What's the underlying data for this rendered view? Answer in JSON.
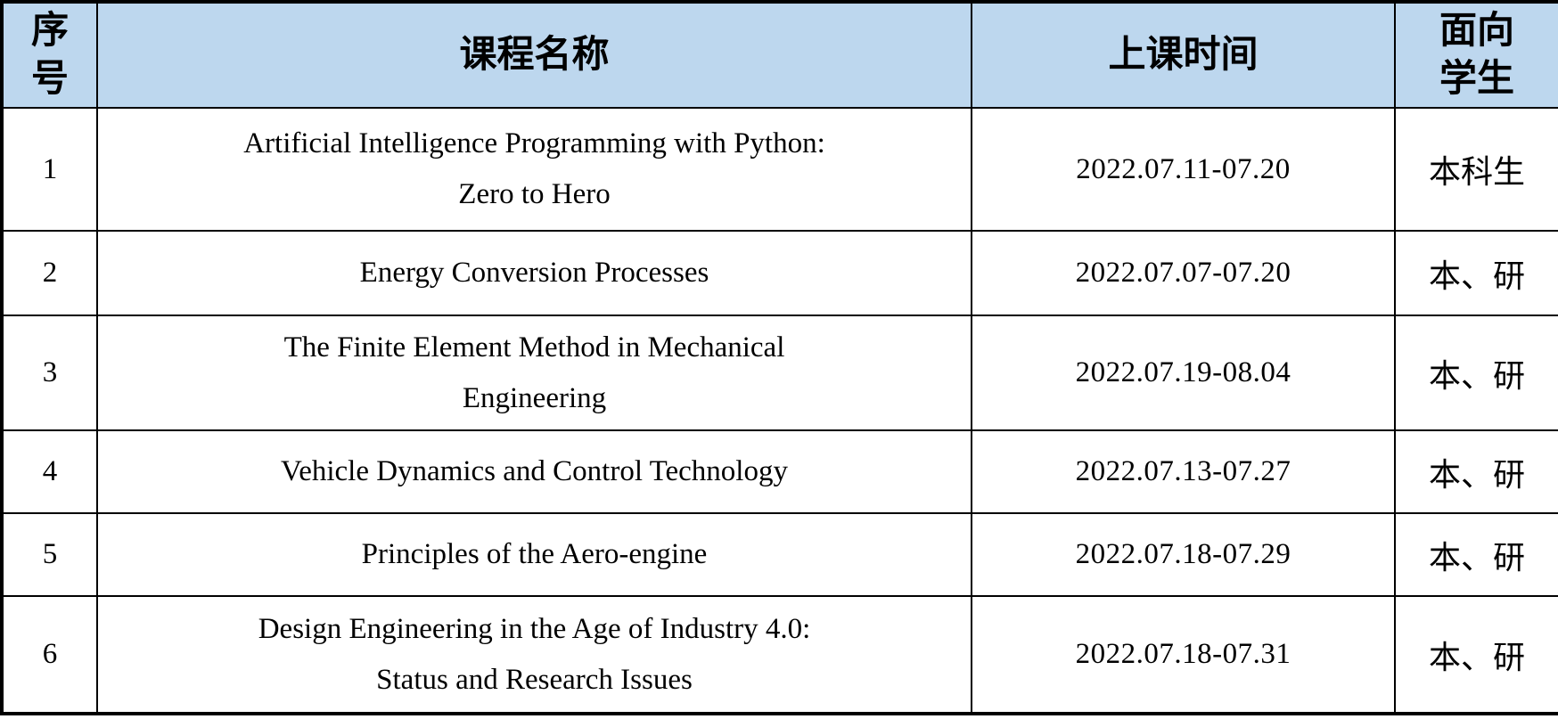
{
  "page": {
    "background_color": "#ffffff",
    "text_color": "#000000",
    "border_color": "#000000"
  },
  "table": {
    "header": {
      "bg_color": "#bdd7ee",
      "columns": [
        {
          "id": "no",
          "lines": [
            "序",
            "号"
          ]
        },
        {
          "id": "course",
          "lines": [
            "课程名称"
          ]
        },
        {
          "id": "time",
          "lines": [
            "上课时间"
          ]
        },
        {
          "id": "students",
          "lines": [
            "面向",
            "学生"
          ]
        }
      ]
    },
    "rows": [
      {
        "no": "1",
        "course_lines": [
          "Artificial Intelligence Programming with Python:",
          "Zero to Hero"
        ],
        "time": "2022.07.11-07.20",
        "students": "本科生"
      },
      {
        "no": "2",
        "course_lines": [
          "Energy Conversion Processes"
        ],
        "time": "2022.07.07-07.20",
        "students": "本、研"
      },
      {
        "no": "3",
        "course_lines": [
          "The Finite Element Method in Mechanical",
          "Engineering"
        ],
        "time": "2022.07.19-08.04",
        "students": "本、研"
      },
      {
        "no": "4",
        "course_lines": [
          "Vehicle Dynamics and Control Technology"
        ],
        "time": "2022.07.13-07.27",
        "students": "本、研"
      },
      {
        "no": "5",
        "course_lines": [
          "Principles of the Aero-engine"
        ],
        "time": "2022.07.18-07.29",
        "students": "本、研"
      },
      {
        "no": "6",
        "course_lines": [
          "Design Engineering in the Age of Industry 4.0:",
          "Status and Research Issues"
        ],
        "time": "2022.07.18-07.31",
        "students": "本、研"
      }
    ]
  }
}
